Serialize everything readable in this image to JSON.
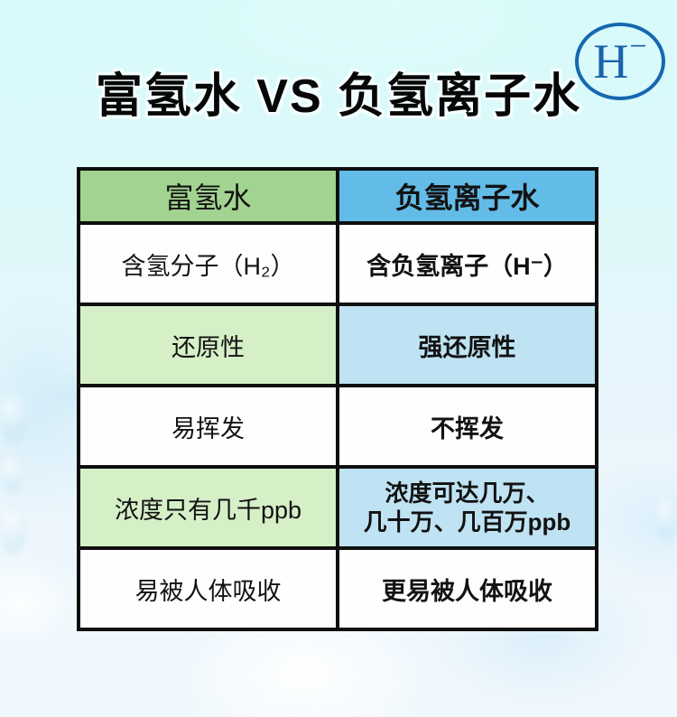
{
  "title": "富氢水 VS 负氢离子水",
  "badge": {
    "symbol": "H",
    "minus": "−"
  },
  "table": {
    "headers": {
      "left": "富氢水",
      "right": "负氢离子水"
    },
    "rows": [
      {
        "left": "含氢分子（H₂）",
        "right": "含负氢离子（H⁻）"
      },
      {
        "left": "还原性",
        "right": "强还原性"
      },
      {
        "left": "易挥发",
        "right": "不挥发"
      },
      {
        "left": "浓度只有几千ppb",
        "right": "浓度可达几万、\n几十万、几百万ppb"
      },
      {
        "left": "易被人体吸收",
        "right": "更易被人体吸收"
      }
    ]
  },
  "chart_data": {
    "type": "table",
    "title": "富氢水 VS 负氢离子水",
    "columns": [
      "富氢水",
      "负氢离子水"
    ],
    "rows": [
      [
        "含氢分子（H₂）",
        "含负氢离子（H⁻）"
      ],
      [
        "还原性",
        "强还原性"
      ],
      [
        "易挥发",
        "不挥发"
      ],
      [
        "浓度只有几千ppb",
        "浓度可达几万、几十万、几百万ppb"
      ],
      [
        "易被人体吸收",
        "更易被人体吸收"
      ]
    ]
  },
  "colors": {
    "header_green": "#a2d391",
    "header_blue": "#63bce8",
    "row_green": "#d5efc7",
    "row_blue": "#bfe3f3",
    "table_border": "#0f0f0f",
    "badge_blue": "#1568b0",
    "background_top": "#d8fafa",
    "background_bottom": "#f0f8fd"
  }
}
